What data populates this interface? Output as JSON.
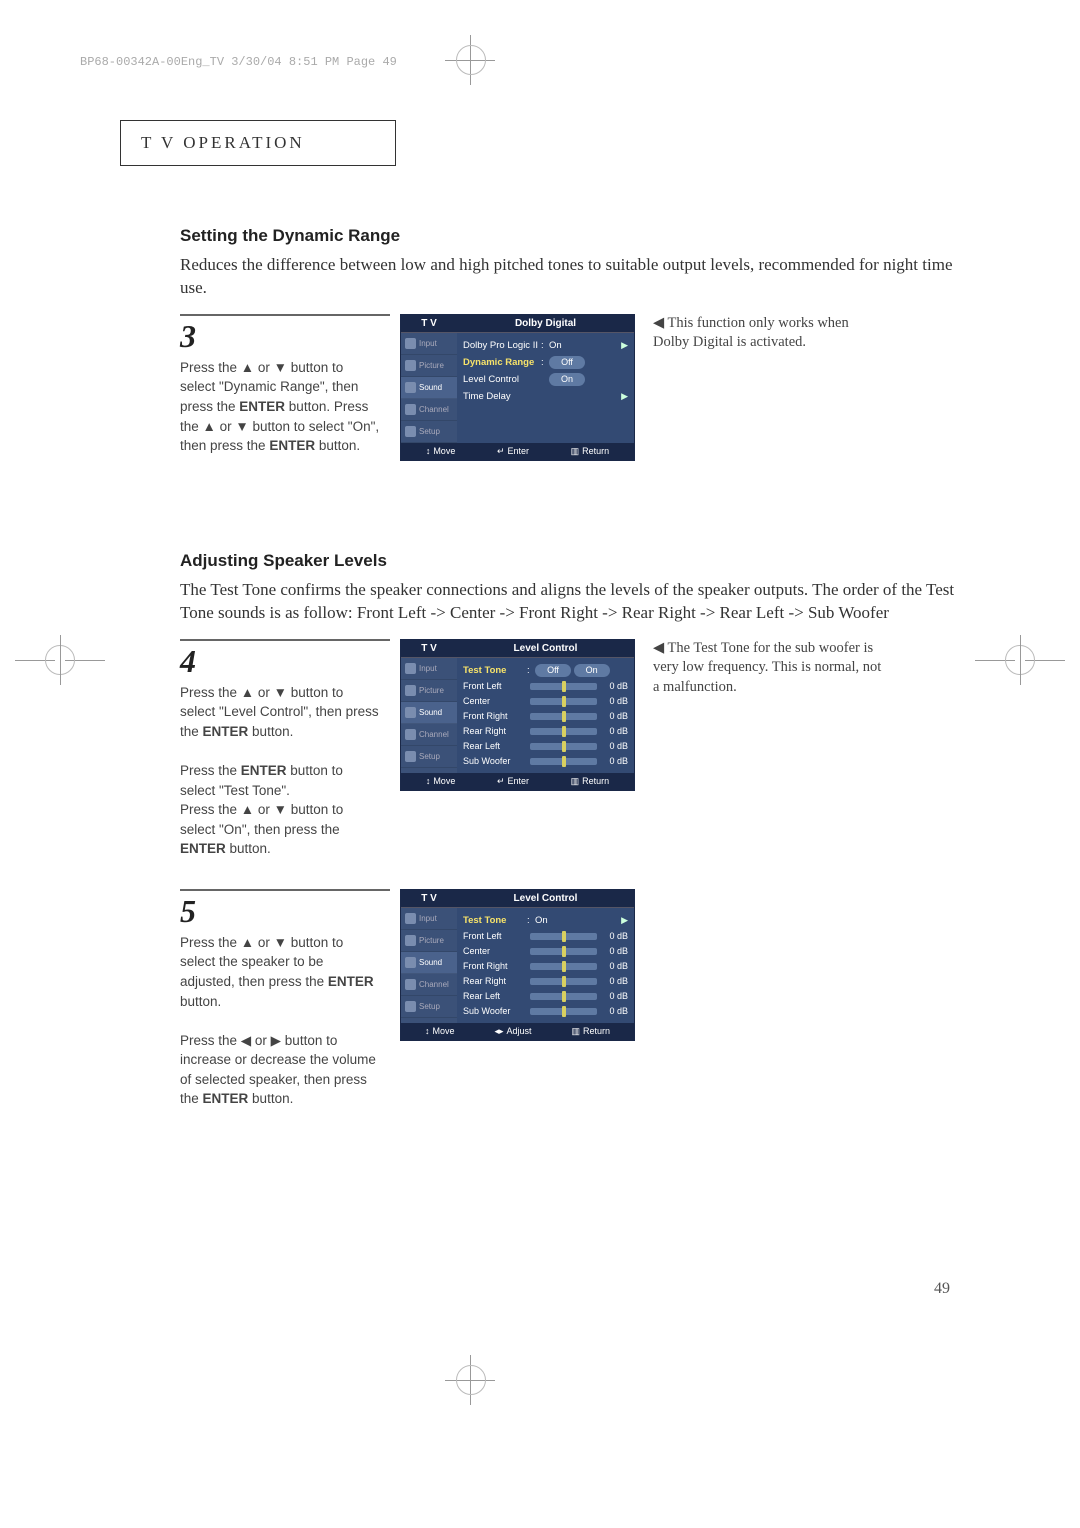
{
  "header_line": "BP68-00342A-00Eng_TV  3/30/04  8:51 PM  Page 49",
  "tab_title": "T V   O",
  "tab_title_rest": "PERATION",
  "page_number": "49",
  "section1": {
    "heading": "Setting the Dynamic Range",
    "intro": "Reduces the difference between low and high pitched tones to suitable output levels, recommended for night time use.",
    "step_num": "3",
    "step_text_1": "Press the ▲ or ▼ button to select \"Dynamic Range\", then press the ",
    "step_enter1": "ENTER",
    "step_text_2": " button. Press the ▲ or ▼ button to select \"On\", then press the ",
    "step_enter2": "ENTER",
    "step_text_3": " button.",
    "note": "◀ This function only works when Dolby Digital is activated."
  },
  "tv1": {
    "header_left": "T V",
    "header_title": "Dolby Digital",
    "side": [
      "Input",
      "Picture",
      "Sound",
      "Channel",
      "Setup"
    ],
    "side_active_index": 2,
    "rows": [
      {
        "label": "Dolby Pro Logic II",
        "sep": ":",
        "val": "On",
        "arrow": true
      },
      {
        "label": "Dynamic Range",
        "sep": ":",
        "val": "Off",
        "highlight": true,
        "pill": true
      },
      {
        "label": "Level Control",
        "sep": "",
        "val": "On",
        "pill": true
      },
      {
        "label": "Time Delay",
        "sep": "",
        "val": "",
        "arrow": true
      }
    ],
    "footer": [
      {
        "icon": "↕",
        "label": "Move"
      },
      {
        "icon": "↵",
        "label": "Enter"
      },
      {
        "icon": "▥",
        "label": "Return"
      }
    ]
  },
  "section2": {
    "heading": "Adjusting Speaker Levels",
    "intro": "The Test Tone confirms the speaker connections and aligns the levels of the speaker outputs. The order of the Test Tone sounds is as follow: Front Left -> Center -> Front Right -> Rear Right -> Rear Left -> Sub Woofer",
    "step_num": "4",
    "p1a": "Press the ▲ or ▼ button to select \"Level Control\", then press the ",
    "p1_enter": "ENTER",
    "p1b": " button.",
    "p2a": "Press the ",
    "p2_enter1": "ENTER",
    "p2b": " button to select \"Test Tone\".",
    "p3a": "Press the ▲ or ▼ button to select \"On\", then press the ",
    "p3_enter": "ENTER",
    "p3b": " button.",
    "note": "◀ The Test Tone for the sub woofer is very low frequency. This is normal, not a malfunction."
  },
  "tv2": {
    "header_left": "T V",
    "header_title": "Level Control",
    "side": [
      "Input",
      "Picture",
      "Sound",
      "Channel",
      "Setup"
    ],
    "side_active_index": 2,
    "top_row": {
      "label": "Test Tone",
      "sep": ":",
      "val": "Off",
      "pill": true,
      "highlight": true,
      "after": "On",
      "after_pill": true
    },
    "sliders": [
      {
        "label": "Front Left",
        "val": "0 dB"
      },
      {
        "label": "Center",
        "val": "0 dB"
      },
      {
        "label": "Front Right",
        "val": "0 dB"
      },
      {
        "label": "Rear Right",
        "val": "0 dB"
      },
      {
        "label": "Rear Left",
        "val": "0 dB"
      },
      {
        "label": "Sub Woofer",
        "val": "0 dB"
      }
    ],
    "footer": [
      {
        "icon": "↕",
        "label": "Move"
      },
      {
        "icon": "↵",
        "label": "Enter"
      },
      {
        "icon": "▥",
        "label": "Return"
      }
    ]
  },
  "section3": {
    "step_num": "5",
    "p1a": "Press the ▲ or ▼ button to select the speaker to be adjusted, then press the ",
    "p1_enter": "ENTER",
    "p1b": " button.",
    "p2a": "Press the ◀ or ▶ button to increase or decrease the volume of selected speaker, then press the ",
    "p2_enter": "ENTER",
    "p2b": " button."
  },
  "tv3": {
    "header_left": "T V",
    "header_title": "Level Control",
    "side": [
      "Input",
      "Picture",
      "Sound",
      "Channel",
      "Setup"
    ],
    "side_active_index": 2,
    "top_row": {
      "label": "Test Tone",
      "sep": ":",
      "val": "On",
      "arrow": true,
      "highlight": true
    },
    "sliders": [
      {
        "label": "Front Left",
        "val": "0 dB"
      },
      {
        "label": "Center",
        "val": "0 dB"
      },
      {
        "label": "Front Right",
        "val": "0 dB"
      },
      {
        "label": "Rear Right",
        "val": "0 dB"
      },
      {
        "label": "Rear Left",
        "val": "0 dB"
      },
      {
        "label": "Sub Woofer",
        "val": "0 dB"
      }
    ],
    "footer": [
      {
        "icon": "↕",
        "label": "Move"
      },
      {
        "icon": "◂▸",
        "label": "Adjust"
      },
      {
        "icon": "▥",
        "label": "Return"
      }
    ]
  }
}
